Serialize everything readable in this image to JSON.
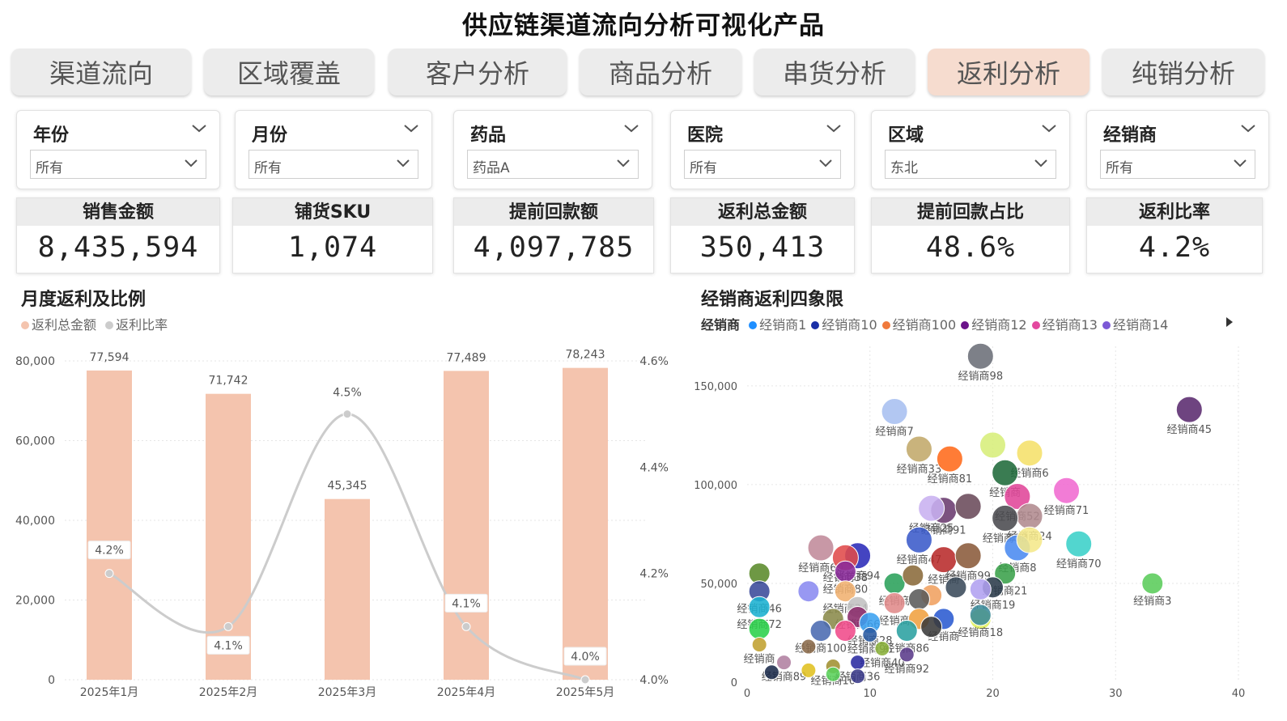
{
  "page_title": "供应链渠道流向分析可视化产品",
  "tabs": [
    {
      "label": "渠道流向",
      "active": false
    },
    {
      "label": "区域覆盖",
      "active": false
    },
    {
      "label": "客户分析",
      "active": false
    },
    {
      "label": "商品分析",
      "active": false
    },
    {
      "label": "串货分析",
      "active": false
    },
    {
      "label": "返利分析",
      "active": true
    },
    {
      "label": "纯销分析",
      "active": false
    }
  ],
  "filters": [
    {
      "label": "年份",
      "value": "所有"
    },
    {
      "label": "月份",
      "value": "所有"
    },
    {
      "label": "药品",
      "value": "药品A"
    },
    {
      "label": "医院",
      "value": "所有"
    },
    {
      "label": "区域",
      "value": "东北"
    },
    {
      "label": "经销商",
      "value": "所有"
    }
  ],
  "kpis": [
    {
      "label": "销售金额",
      "value": "8,435,594"
    },
    {
      "label": "铺货SKU",
      "value": "1,074"
    },
    {
      "label": "提前回款额",
      "value": "4,097,785"
    },
    {
      "label": "返利总金额",
      "value": "350,413"
    },
    {
      "label": "提前回款占比",
      "value": "48.6%"
    },
    {
      "label": "返利比率",
      "value": "4.2%"
    }
  ],
  "colors": {
    "accent_tab": "#f6dccf",
    "bar": "#f4c4ae",
    "line": "#cccccc"
  },
  "chart_data": [
    {
      "type": "bar",
      "title": "月度返利及比例",
      "categories": [
        "2025年1月",
        "2025年2月",
        "2025年3月",
        "2025年4月",
        "2025年5月"
      ],
      "series": [
        {
          "name": "返利总金额",
          "type": "bar",
          "values": [
            77594,
            71742,
            45345,
            77489,
            78243
          ],
          "labels": [
            "77,594",
            "71,742",
            "45,345",
            "77,489",
            "78,243"
          ],
          "color": "#f4c4ae"
        },
        {
          "name": "返利比率",
          "type": "line",
          "values": [
            4.2,
            4.1,
            4.5,
            4.1,
            4.0
          ],
          "labels": [
            "4.2%",
            "4.1%",
            "4.5%",
            "4.1%",
            "4.0%"
          ],
          "color": "#cccccc"
        }
      ],
      "y_left": {
        "ticks": [
          "0",
          "20,000",
          "40,000",
          "60,000",
          "80,000"
        ],
        "lim": [
          0,
          80000
        ]
      },
      "y_right": {
        "ticks": [
          "4.0%",
          "4.2%",
          "4.4%",
          "4.6%"
        ],
        "lim": [
          4.0,
          4.6
        ]
      }
    },
    {
      "type": "scatter",
      "title": "经销商返利四象限",
      "legend_title": "经销商",
      "legend": [
        {
          "name": "经销商1",
          "color": "#1f8fff"
        },
        {
          "name": "经销商10",
          "color": "#1a2fa6"
        },
        {
          "name": "经销商100",
          "color": "#f07a3c"
        },
        {
          "name": "经销商12",
          "color": "#6b138a"
        },
        {
          "name": "经销商13",
          "color": "#e3489f"
        },
        {
          "name": "经销商14",
          "color": "#7c59d6"
        }
      ],
      "x_ticks": [
        "0",
        "10",
        "20",
        "30",
        "40"
      ],
      "y_ticks": [
        "0",
        "50,000",
        "100,000",
        "150,000"
      ],
      "xlim": [
        0,
        40
      ],
      "ylim": [
        0,
        170000
      ],
      "points": [
        {
          "x": 19,
          "y": 165000,
          "label": "经销商98",
          "color": "#6b6e78"
        },
        {
          "x": 36,
          "y": 138000,
          "label": "经销商45",
          "color": "#5a2a6e"
        },
        {
          "x": 12,
          "y": 137000,
          "label": "经销商7",
          "color": "#a7bff0"
        },
        {
          "x": 14,
          "y": 118000,
          "label": "经销商33",
          "color": "#c2a86a"
        },
        {
          "x": 20,
          "y": 120000,
          "label": "",
          "color": "#d7ee7a"
        },
        {
          "x": 23,
          "y": 116000,
          "label": "经销商6",
          "color": "#f5e06a"
        },
        {
          "x": 16.5,
          "y": 113000,
          "label": "经销商81",
          "color": "#ff6a1a"
        },
        {
          "x": 21,
          "y": 106000,
          "label": "经销商",
          "color": "#1f6a3a"
        },
        {
          "x": 26,
          "y": 97000,
          "label": "经销商71",
          "color": "#f06ad0"
        },
        {
          "x": 22,
          "y": 94000,
          "label": "经销商52",
          "color": "#e04598"
        },
        {
          "x": 16,
          "y": 87000,
          "label": "经销商91",
          "color": "#6a3a6e"
        },
        {
          "x": 15,
          "y": 88000,
          "label": "经销商25",
          "color": "#c8b0f0"
        },
        {
          "x": 18,
          "y": 89000,
          "label": "",
          "color": "#6a4a5a"
        },
        {
          "x": 23,
          "y": 84000,
          "label": "经销商24",
          "color": "#b08a8e"
        },
        {
          "x": 21,
          "y": 83000,
          "label": "经销商13",
          "color": "#4a4a4e"
        },
        {
          "x": 14,
          "y": 72000,
          "label": "经销商47",
          "color": "#3a5aca"
        },
        {
          "x": 22,
          "y": 68000,
          "label": "经销商8",
          "color": "#4a8af0"
        },
        {
          "x": 23,
          "y": 72000,
          "label": "",
          "color": "#f5e88a"
        },
        {
          "x": 27,
          "y": 70000,
          "label": "经销商70",
          "color": "#3ad0c8"
        },
        {
          "x": 33,
          "y": 50000,
          "label": "经销商3",
          "color": "#5acc5a"
        },
        {
          "x": 6,
          "y": 68000,
          "label": "经销商60",
          "color": "#c08a9a"
        },
        {
          "x": 9,
          "y": 64000,
          "label": "经销商94",
          "color": "#2a2ab8"
        },
        {
          "x": 8,
          "y": 63000,
          "label": "经销商38",
          "color": "#e04a4a"
        },
        {
          "x": 8,
          "y": 56000,
          "label": "经销商80",
          "color": "#8a2a9a"
        },
        {
          "x": 16,
          "y": 62000,
          "label": "经销商",
          "color": "#b82a2a"
        },
        {
          "x": 18,
          "y": 64000,
          "label": "经销商99",
          "color": "#8a5a3a"
        },
        {
          "x": 21,
          "y": 55000,
          "label": "经销商21",
          "color": "#3aa04a"
        },
        {
          "x": 20,
          "y": 48000,
          "label": "经销商19",
          "color": "#2a3a4a"
        },
        {
          "x": 1,
          "y": 55000,
          "label": "",
          "color": "#5a8a2a"
        },
        {
          "x": 1,
          "y": 46000,
          "label": "经销商46",
          "color": "#3a4a9a"
        },
        {
          "x": 5,
          "y": 46000,
          "label": "",
          "color": "#8a8af0"
        },
        {
          "x": 1,
          "y": 38000,
          "label": "经销商72",
          "color": "#1ab0d0"
        },
        {
          "x": 8,
          "y": 46000,
          "label": "经销商34",
          "color": "#f0b070"
        },
        {
          "x": 12,
          "y": 50000,
          "label": "经销商",
          "color": "#2aa05a"
        },
        {
          "x": 13.5,
          "y": 54000,
          "label": "",
          "color": "#8a6a3a"
        },
        {
          "x": 15,
          "y": 44000,
          "label": "",
          "color": "#f0a060"
        },
        {
          "x": 17,
          "y": 48000,
          "label": "",
          "color": "#3a4a5a"
        },
        {
          "x": 19,
          "y": 47000,
          "label": "",
          "color": "#b0a0f0"
        },
        {
          "x": 9,
          "y": 38000,
          "label": "经销商66",
          "color": "#c0c0c0"
        },
        {
          "x": 12,
          "y": 40000,
          "label": "经销商",
          "color": "#e08a8a"
        },
        {
          "x": 14,
          "y": 42000,
          "label": "",
          "color": "#5a5a5a"
        },
        {
          "x": 16,
          "y": 32000,
          "label": "经销商",
          "color": "#2a5ad0"
        },
        {
          "x": 19,
          "y": 32000,
          "label": "",
          "color": "#e0f05a"
        },
        {
          "x": 19,
          "y": 34000,
          "label": "经销商18",
          "color": "#3a8a9a"
        },
        {
          "x": 7,
          "y": 32000,
          "label": "",
          "color": "#8a8a4a"
        },
        {
          "x": 9,
          "y": 33000,
          "label": "",
          "color": "#8a2a6a"
        },
        {
          "x": 10,
          "y": 30000,
          "label": "经销商28",
          "color": "#3aa0f0"
        },
        {
          "x": 14,
          "y": 32000,
          "label": "",
          "color": "#f0a040"
        },
        {
          "x": 13,
          "y": 26000,
          "label": "经销商86",
          "color": "#2aa0a0"
        },
        {
          "x": 15,
          "y": 28000,
          "label": "",
          "color": "#3a3a3a"
        },
        {
          "x": 6,
          "y": 26000,
          "label": "经销商100",
          "color": "#4a6ab0"
        },
        {
          "x": 8,
          "y": 26000,
          "label": "",
          "color": "#f04a8a"
        },
        {
          "x": 10,
          "y": 24000,
          "label": "经销商96",
          "color": "#2a5aa0"
        },
        {
          "x": 1,
          "y": 27000,
          "label": "",
          "color": "#2ad04a"
        },
        {
          "x": 1,
          "y": 19000,
          "label": "经销商",
          "color": "#c0a030"
        },
        {
          "x": 5,
          "y": 18000,
          "label": "",
          "color": "#8a6a4a"
        },
        {
          "x": 11,
          "y": 17000,
          "label": "经销商40",
          "color": "#8ab03a"
        },
        {
          "x": 13,
          "y": 14000,
          "label": "经销商92",
          "color": "#5a3a8a"
        },
        {
          "x": 3,
          "y": 10000,
          "label": "经销商89",
          "color": "#b080a0"
        },
        {
          "x": 7,
          "y": 8000,
          "label": "经销商10",
          "color": "#a09030"
        },
        {
          "x": 9,
          "y": 10000,
          "label": "经销商36",
          "color": "#2a2aa0"
        },
        {
          "x": 2,
          "y": 5000,
          "label": "",
          "color": "#1a2a4a"
        },
        {
          "x": 5,
          "y": 6000,
          "label": "",
          "color": "#e0c020"
        },
        {
          "x": 7,
          "y": 4000,
          "label": "",
          "color": "#5ad05a"
        },
        {
          "x": 9,
          "y": 3000,
          "label": "",
          "color": "#3a3a8a"
        }
      ]
    }
  ]
}
